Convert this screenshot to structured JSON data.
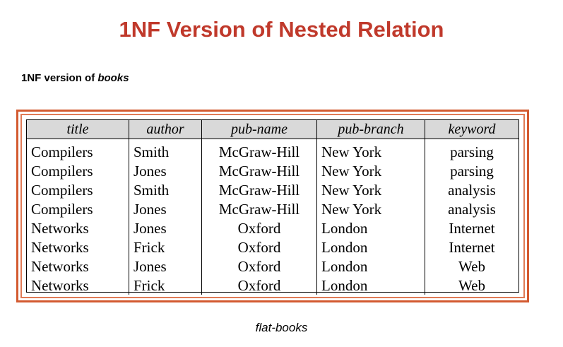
{
  "slide": {
    "title": "1NF Version of Nested Relation",
    "subtitle_plain": "1NF version of ",
    "subtitle_italic": "books",
    "caption": "flat-books"
  },
  "table": {
    "headers": [
      "title",
      "author",
      "pub-name",
      "pub-branch",
      "keyword"
    ],
    "rows": [
      [
        "Compilers",
        "Smith",
        "McGraw-Hill",
        "New York",
        "parsing"
      ],
      [
        "Compilers",
        "Jones",
        "McGraw-Hill",
        "New York",
        "parsing"
      ],
      [
        "Compilers",
        "Smith",
        "McGraw-Hill",
        "New York",
        "analysis"
      ],
      [
        "Compilers",
        "Jones",
        "McGraw-Hill",
        "New York",
        "analysis"
      ],
      [
        "Networks",
        "Jones",
        "Oxford",
        "London",
        "Internet"
      ],
      [
        "Networks",
        "Frick",
        "Oxford",
        "London",
        "Internet"
      ],
      [
        "Networks",
        "Jones",
        "Oxford",
        "London",
        "Web"
      ],
      [
        "Networks",
        "Frick",
        "Oxford",
        "London",
        "Web"
      ]
    ]
  },
  "colors": {
    "title": "#c0392b",
    "frame_outer": "#d35a30",
    "frame_inner": "#e07a55",
    "header_bg": "#d9d9d9"
  }
}
